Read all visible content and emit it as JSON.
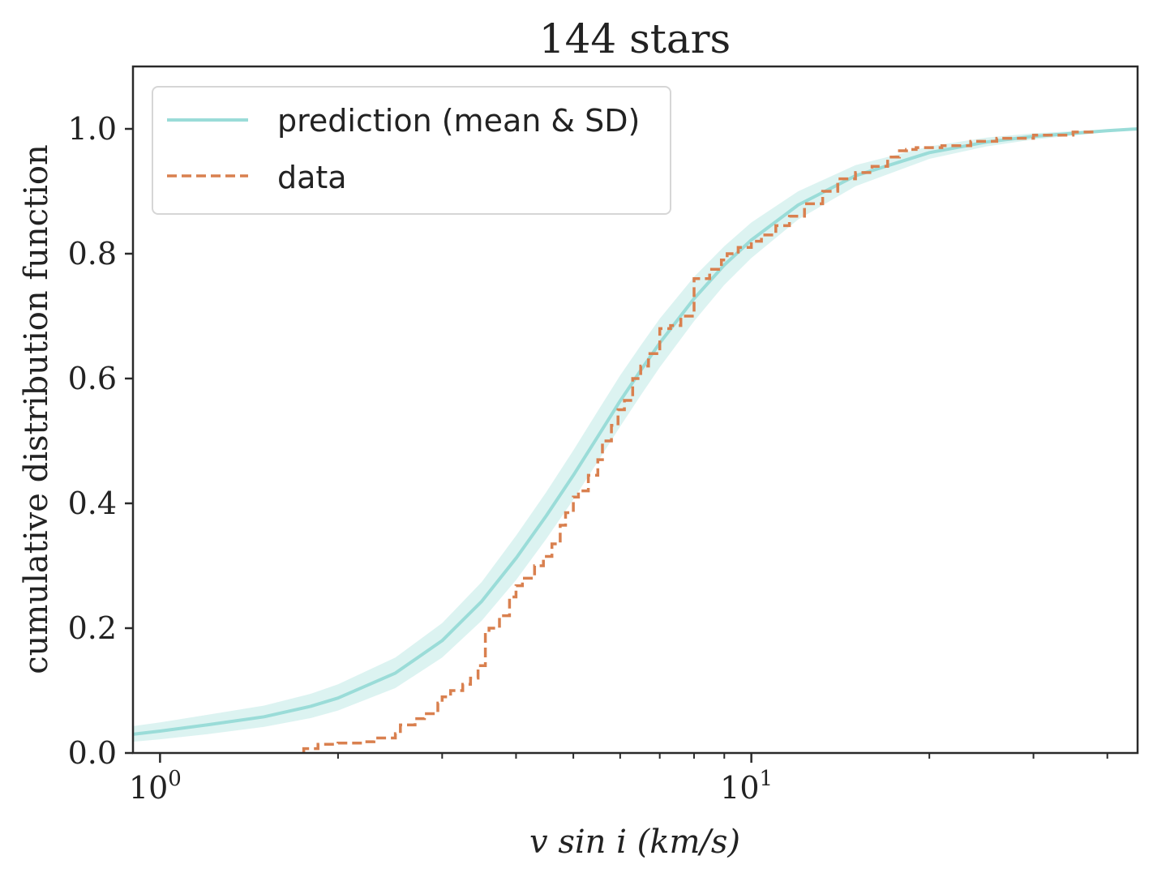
{
  "chart_data": {
    "type": "line",
    "title": "144 stars",
    "xlabel": "v sin i (km/s)",
    "ylabel": "cumulative distribution function",
    "xscale": "log",
    "xlim": [
      0.9,
      45
    ],
    "ylim": [
      0.0,
      1.1
    ],
    "yticks": [
      {
        "value": 0.0,
        "label": "0.0"
      },
      {
        "value": 0.2,
        "label": "0.2"
      },
      {
        "value": 0.4,
        "label": "0.4"
      },
      {
        "value": 0.6,
        "label": "0.6"
      },
      {
        "value": 0.8,
        "label": "0.8"
      },
      {
        "value": 1.0,
        "label": "1.0"
      }
    ],
    "xticks_major": [
      {
        "value": 1,
        "base": "10",
        "exp": "0"
      },
      {
        "value": 10,
        "base": "10",
        "exp": "1"
      }
    ],
    "xticks_minor": [
      2,
      3,
      4,
      5,
      6,
      7,
      8,
      9,
      20,
      30,
      40
    ],
    "legend_position": "upper-left",
    "series": [
      {
        "name": "prediction (mean & SD)",
        "style": "solid",
        "color": "#9adcd8",
        "band_color": "#d6f1ef",
        "x": [
          0.9,
          1.0,
          1.2,
          1.5,
          1.8,
          2.0,
          2.5,
          3.0,
          3.5,
          4.0,
          4.5,
          5.0,
          5.5,
          6.0,
          6.5,
          7.0,
          8.0,
          9.0,
          10.0,
          12.0,
          15.0,
          20.0,
          25.0,
          30.0,
          40.0,
          45.0
        ],
        "mean": [
          0.03,
          0.035,
          0.045,
          0.058,
          0.075,
          0.088,
          0.128,
          0.18,
          0.243,
          0.312,
          0.38,
          0.445,
          0.507,
          0.564,
          0.613,
          0.657,
          0.728,
          0.782,
          0.822,
          0.878,
          0.925,
          0.962,
          0.979,
          0.988,
          0.997,
          1.0
        ],
        "lower": [
          0.018,
          0.022,
          0.03,
          0.042,
          0.056,
          0.068,
          0.104,
          0.153,
          0.212,
          0.277,
          0.343,
          0.406,
          0.467,
          0.523,
          0.573,
          0.618,
          0.692,
          0.75,
          0.793,
          0.855,
          0.908,
          0.952,
          0.972,
          0.983,
          0.995,
          1.0
        ],
        "upper": [
          0.043,
          0.049,
          0.061,
          0.076,
          0.095,
          0.11,
          0.153,
          0.208,
          0.274,
          0.348,
          0.418,
          0.485,
          0.548,
          0.605,
          0.653,
          0.696,
          0.763,
          0.812,
          0.85,
          0.9,
          0.942,
          0.972,
          0.986,
          0.993,
          0.999,
          1.0
        ]
      },
      {
        "name": "data",
        "style": "dashed",
        "color": "#d9804f",
        "x": [
          1.75,
          1.75,
          1.85,
          2.0,
          2.2,
          2.3,
          2.5,
          2.55,
          2.7,
          2.8,
          2.95,
          3.0,
          3.1,
          3.25,
          3.35,
          3.45,
          3.55,
          3.6,
          3.75,
          3.9,
          4.0,
          4.1,
          4.3,
          4.45,
          4.6,
          4.75,
          4.85,
          5.0,
          5.1,
          5.3,
          5.5,
          5.6,
          5.8,
          5.95,
          6.1,
          6.3,
          6.5,
          6.7,
          7.0,
          7.3,
          7.6,
          8.0,
          8.5,
          8.9,
          9.1,
          9.5,
          10.0,
          10.4,
          11.0,
          11.6,
          12.3,
          13.2,
          14.0,
          15.0,
          16.0,
          17.0,
          17.8,
          18.3,
          19.0,
          21.0,
          23.5,
          26.0,
          30.0,
          35.0,
          38.0
        ],
        "y": [
          0.0,
          0.007,
          0.014,
          0.016,
          0.018,
          0.024,
          0.031,
          0.045,
          0.055,
          0.063,
          0.08,
          0.09,
          0.1,
          0.11,
          0.12,
          0.14,
          0.19,
          0.2,
          0.22,
          0.25,
          0.268,
          0.28,
          0.3,
          0.315,
          0.335,
          0.365,
          0.385,
          0.41,
          0.42,
          0.445,
          0.47,
          0.5,
          0.525,
          0.55,
          0.565,
          0.6,
          0.62,
          0.64,
          0.68,
          0.685,
          0.7,
          0.76,
          0.775,
          0.79,
          0.8,
          0.81,
          0.82,
          0.83,
          0.845,
          0.86,
          0.88,
          0.9,
          0.92,
          0.93,
          0.94,
          0.955,
          0.965,
          0.967,
          0.97,
          0.973,
          0.98,
          0.985,
          0.99,
          0.995,
          1.0
        ]
      }
    ]
  }
}
